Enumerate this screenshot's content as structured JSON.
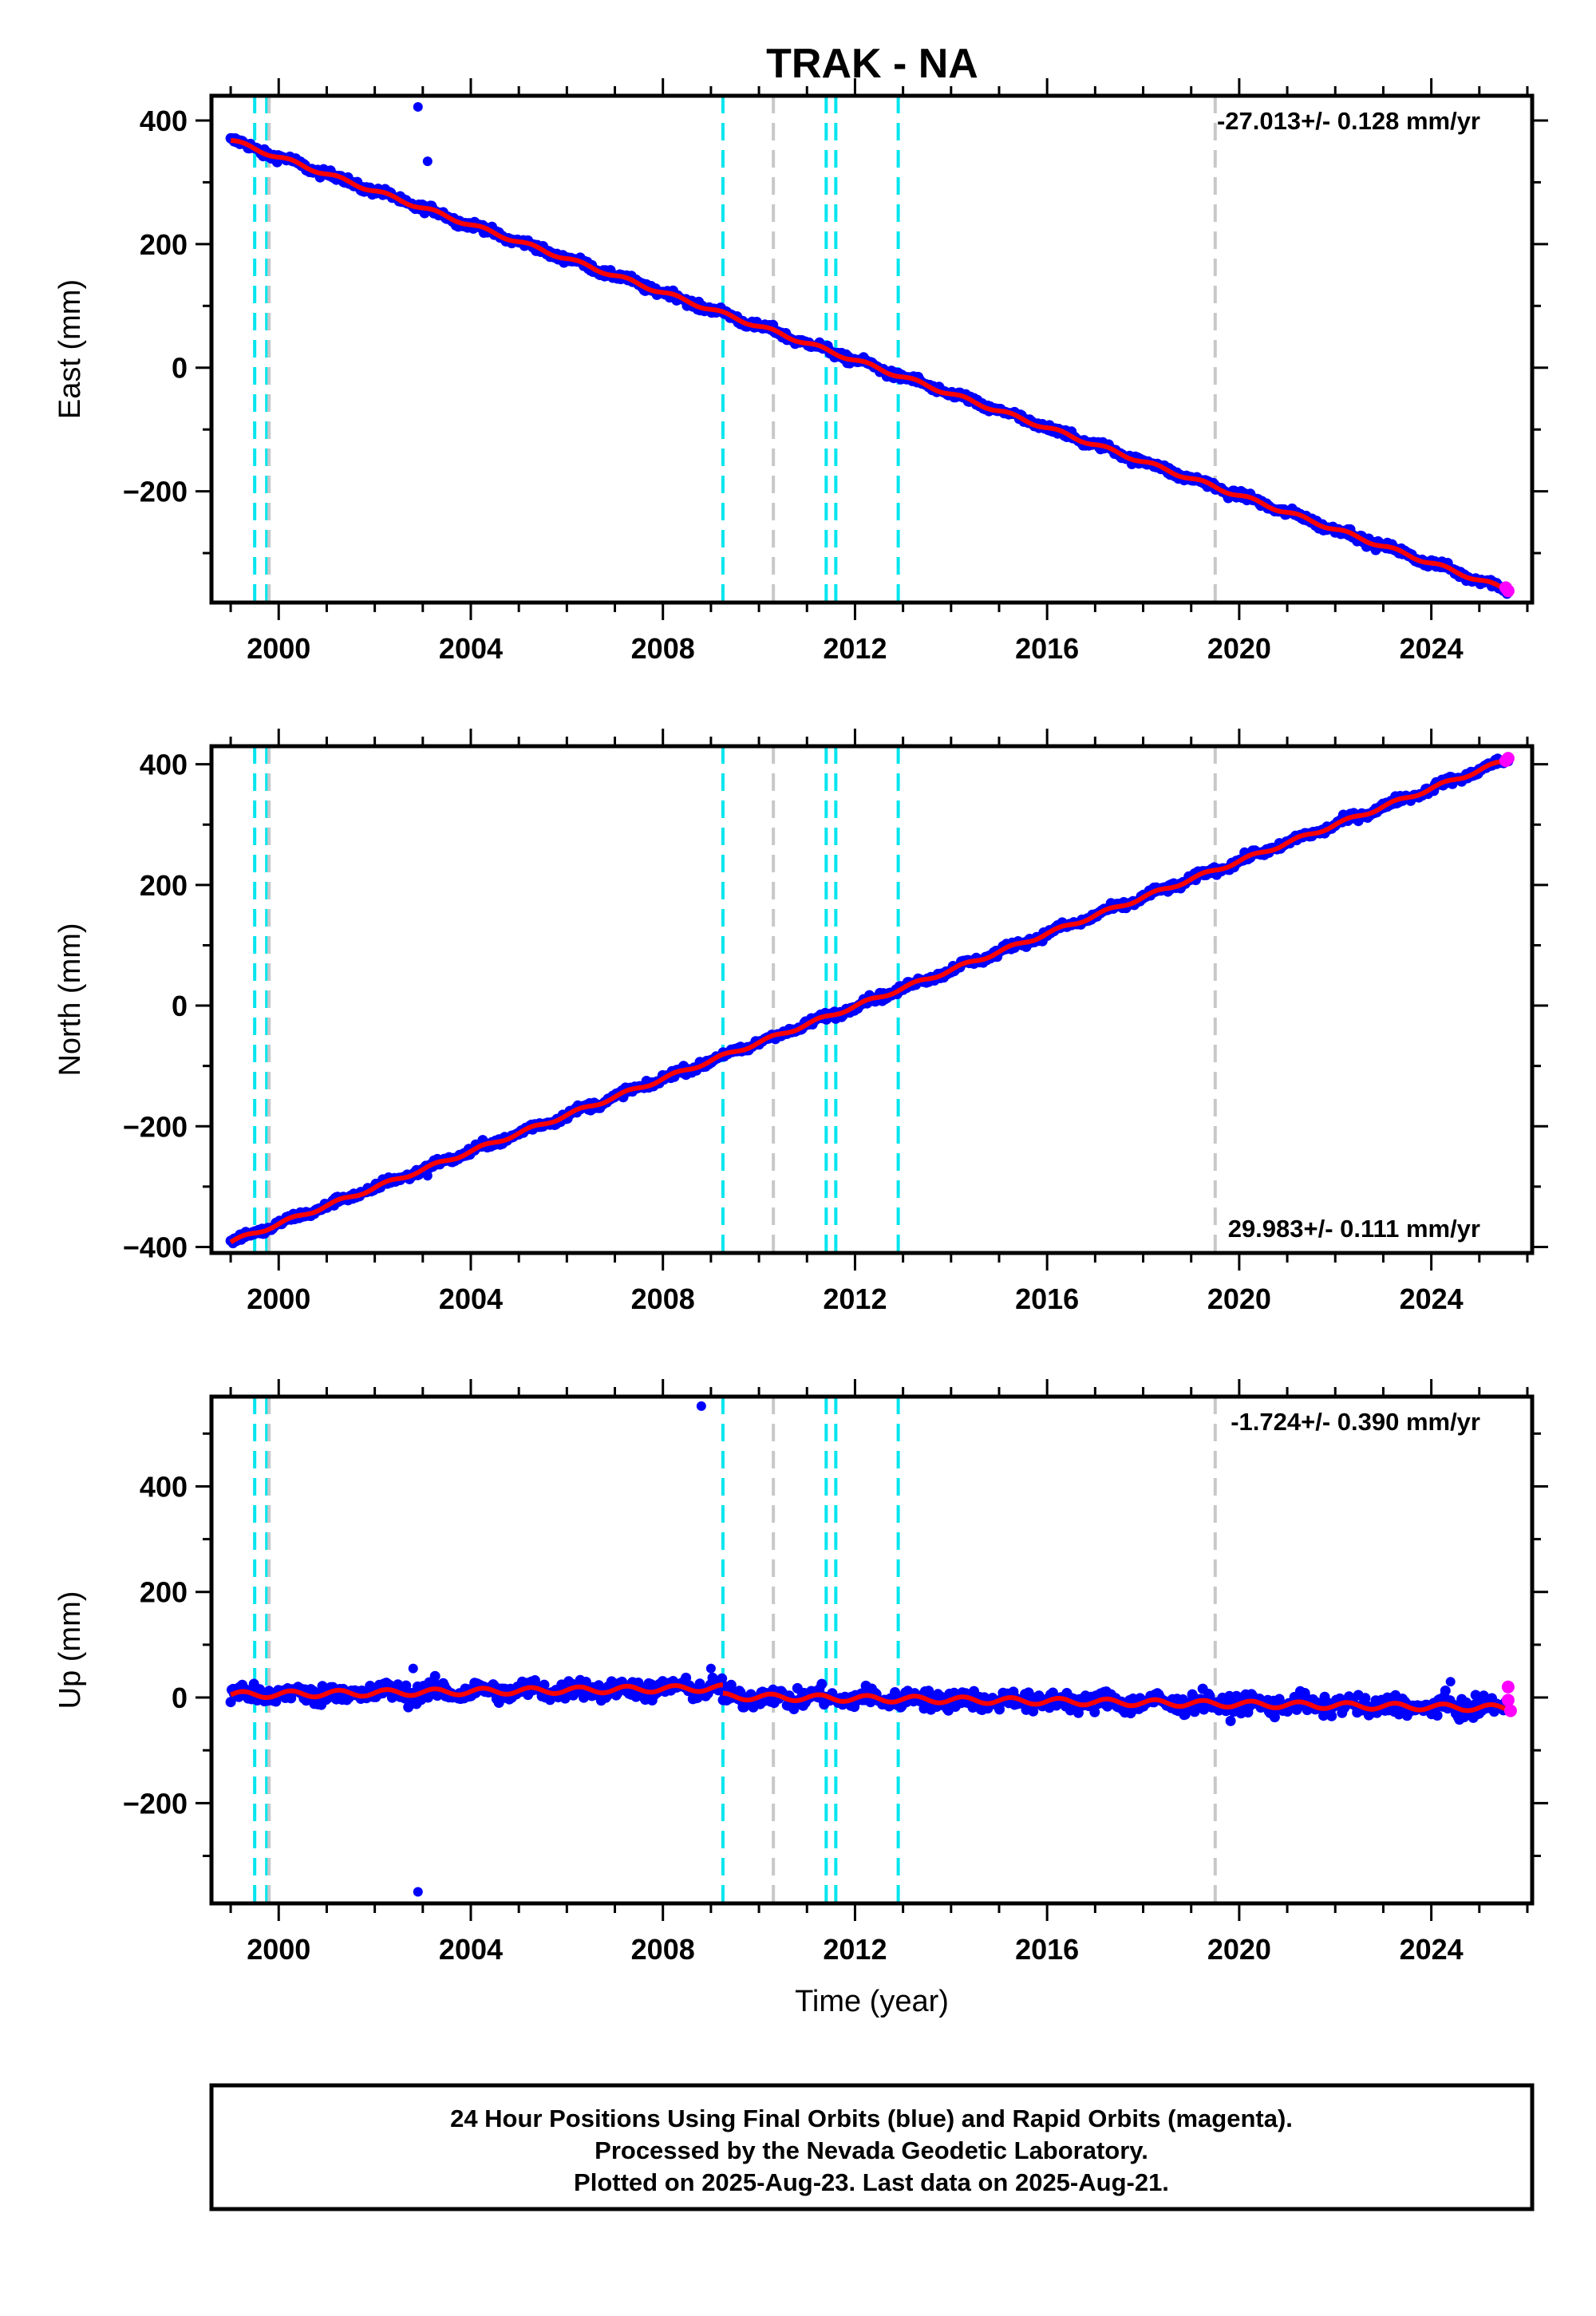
{
  "figure": {
    "title": "TRAK - NA",
    "footer_lines": [
      "24 Hour Positions Using Final Orbits (blue) and Rapid Orbits (magenta).",
      "Processed by the Nevada Geodetic Laboratory.",
      "Plotted on 2025-Aug-23. Last data on 2025-Aug-21."
    ]
  },
  "colors": {
    "final_orbits": "#0000ff",
    "rapid_orbits": "#ff00ff",
    "model_fit": "#ff0000",
    "equipment_change": "#00e5ee",
    "earthquake_event": "#c8c8c8",
    "axes": "#000000"
  },
  "chart_data": [
    {
      "type": "scatter",
      "name": "east",
      "ylabel": "East (mm)",
      "xlabel": "",
      "xlim": [
        1998.6,
        2026.1
      ],
      "ylim": [
        -380,
        440
      ],
      "yticks": [
        -200,
        0,
        200,
        400
      ],
      "xticks": [
        2000,
        2004,
        2008,
        2012,
        2016,
        2020,
        2024
      ],
      "rate_label": "-27.013+/- 0.128 mm/yr",
      "rate_position": "top-right",
      "trend": {
        "start": [
          1999.0,
          368
        ],
        "end": [
          2025.6,
          -360
        ]
      },
      "outliers": [
        [
          2002.9,
          422
        ],
        [
          2003.1,
          334
        ]
      ],
      "rapid_points": [
        [
          2025.55,
          -356
        ],
        [
          2025.6,
          -361
        ]
      ],
      "vlines_cyan": [
        1999.5,
        1999.75,
        2009.25,
        2011.4,
        2011.6,
        2012.9
      ],
      "vlines_gray": [
        1999.8,
        2010.3,
        2019.5
      ]
    },
    {
      "type": "scatter",
      "name": "north",
      "ylabel": "North (mm)",
      "xlabel": "",
      "xlim": [
        1998.6,
        2026.1
      ],
      "ylim": [
        -410,
        430
      ],
      "yticks": [
        -400,
        -200,
        0,
        200,
        400
      ],
      "xticks": [
        2000,
        2004,
        2008,
        2012,
        2016,
        2020,
        2024
      ],
      "rate_label": "29.983+/- 0.111 mm/yr",
      "rate_position": "bottom-right",
      "trend": {
        "start": [
          1999.0,
          -392
        ],
        "end": [
          2025.6,
          408
        ]
      },
      "outliers": [
        [
          2003.1,
          -282
        ]
      ],
      "rapid_points": [
        [
          2025.55,
          406
        ],
        [
          2025.6,
          410
        ]
      ],
      "vlines_cyan": [
        1999.5,
        1999.75,
        2009.25,
        2011.4,
        2011.6,
        2012.9
      ],
      "vlines_gray": [
        1999.8,
        2010.3,
        2019.5
      ]
    },
    {
      "type": "scatter",
      "name": "up",
      "ylabel": "Up (mm)",
      "xlabel": "Time (year)",
      "xlim": [
        1998.6,
        2026.1
      ],
      "ylim": [
        -390,
        570
      ],
      "yticks": [
        -200,
        0,
        200,
        400
      ],
      "xticks": [
        2000,
        2004,
        2008,
        2012,
        2016,
        2020,
        2024
      ],
      "rate_label": "-1.724+/- 0.390 mm/yr",
      "rate_position": "top-right",
      "trend_segments": [
        {
          "start": [
            1999.0,
            5
          ],
          "end": [
            2009.25,
            18
          ]
        },
        {
          "start": [
            2009.25,
            2
          ],
          "end": [
            2025.6,
            -20
          ]
        }
      ],
      "outliers": [
        [
          2008.8,
          552
        ],
        [
          2002.9,
          -368
        ],
        [
          2002.8,
          55
        ],
        [
          2009.0,
          55
        ],
        [
          2024.4,
          30
        ]
      ],
      "rapid_points": [
        [
          2025.6,
          20
        ],
        [
          2025.6,
          -5
        ],
        [
          2025.65,
          -25
        ]
      ],
      "vlines_cyan": [
        1999.5,
        1999.75,
        2009.25,
        2011.4,
        2011.6,
        2012.9
      ],
      "vlines_gray": [
        1999.8,
        2010.3,
        2019.5
      ]
    }
  ]
}
